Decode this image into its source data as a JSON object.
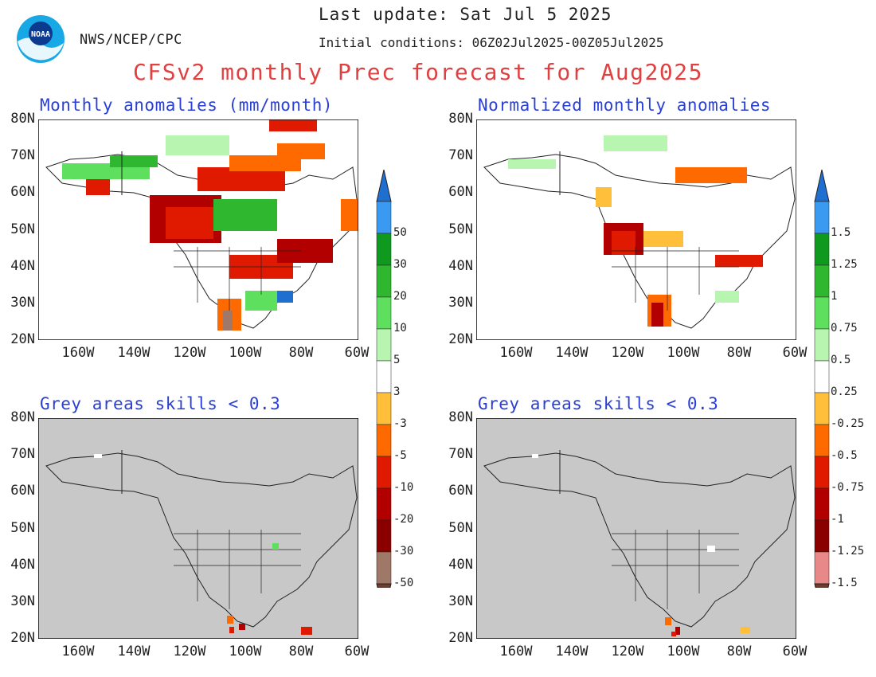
{
  "header": {
    "org": "NWS/NCEP/CPC",
    "last_update": "Last update: Sat Jul 5 2025",
    "initial_conditions": "Initial conditions: 06Z02Jul2025-00Z05Jul2025",
    "title": "CFSv2 monthly Prec forecast for Aug2025"
  },
  "panels": {
    "top_left_title": "Monthly anomalies (mm/month)",
    "top_right_title": "Normalized monthly anomalies",
    "bottom_left_title": "Grey areas skills < 0.3",
    "bottom_right_title": "Grey areas skills < 0.3"
  },
  "axes": {
    "lat_labels": [
      "80N",
      "70N",
      "60N",
      "50N",
      "40N",
      "30N",
      "20N"
    ],
    "lon_labels": [
      "160W",
      "140W",
      "120W",
      "100W",
      "80W",
      "60W"
    ]
  },
  "colorbars": {
    "mm": [
      "50",
      "30",
      "20",
      "10",
      "5",
      "3",
      "-3",
      "-5",
      "-10",
      "-20",
      "-30",
      "-50"
    ],
    "normalized": [
      "1.5",
      "1.25",
      "1",
      "0.75",
      "0.5",
      "0.25",
      "-0.25",
      "-0.5",
      "-0.75",
      "-1",
      "-1.25",
      "-1.5"
    ]
  },
  "colors": {
    "wet": [
      "#1f6fd0",
      "#3a99f0",
      "#0f9a1f",
      "#2fb82f",
      "#5ee05e",
      "#b7f5b0"
    ],
    "dry": [
      "#ffbf3a",
      "#ff6a00",
      "#e01a00",
      "#b20000",
      "#8a0000"
    ],
    "mm_ext_low": "#a07868",
    "mm_arrow_low": "#6b3e2e",
    "norm_ext_low": "#e88888",
    "norm_arrow_low": "#6b3e2e",
    "grey_mask": "#c8c8c8"
  }
}
